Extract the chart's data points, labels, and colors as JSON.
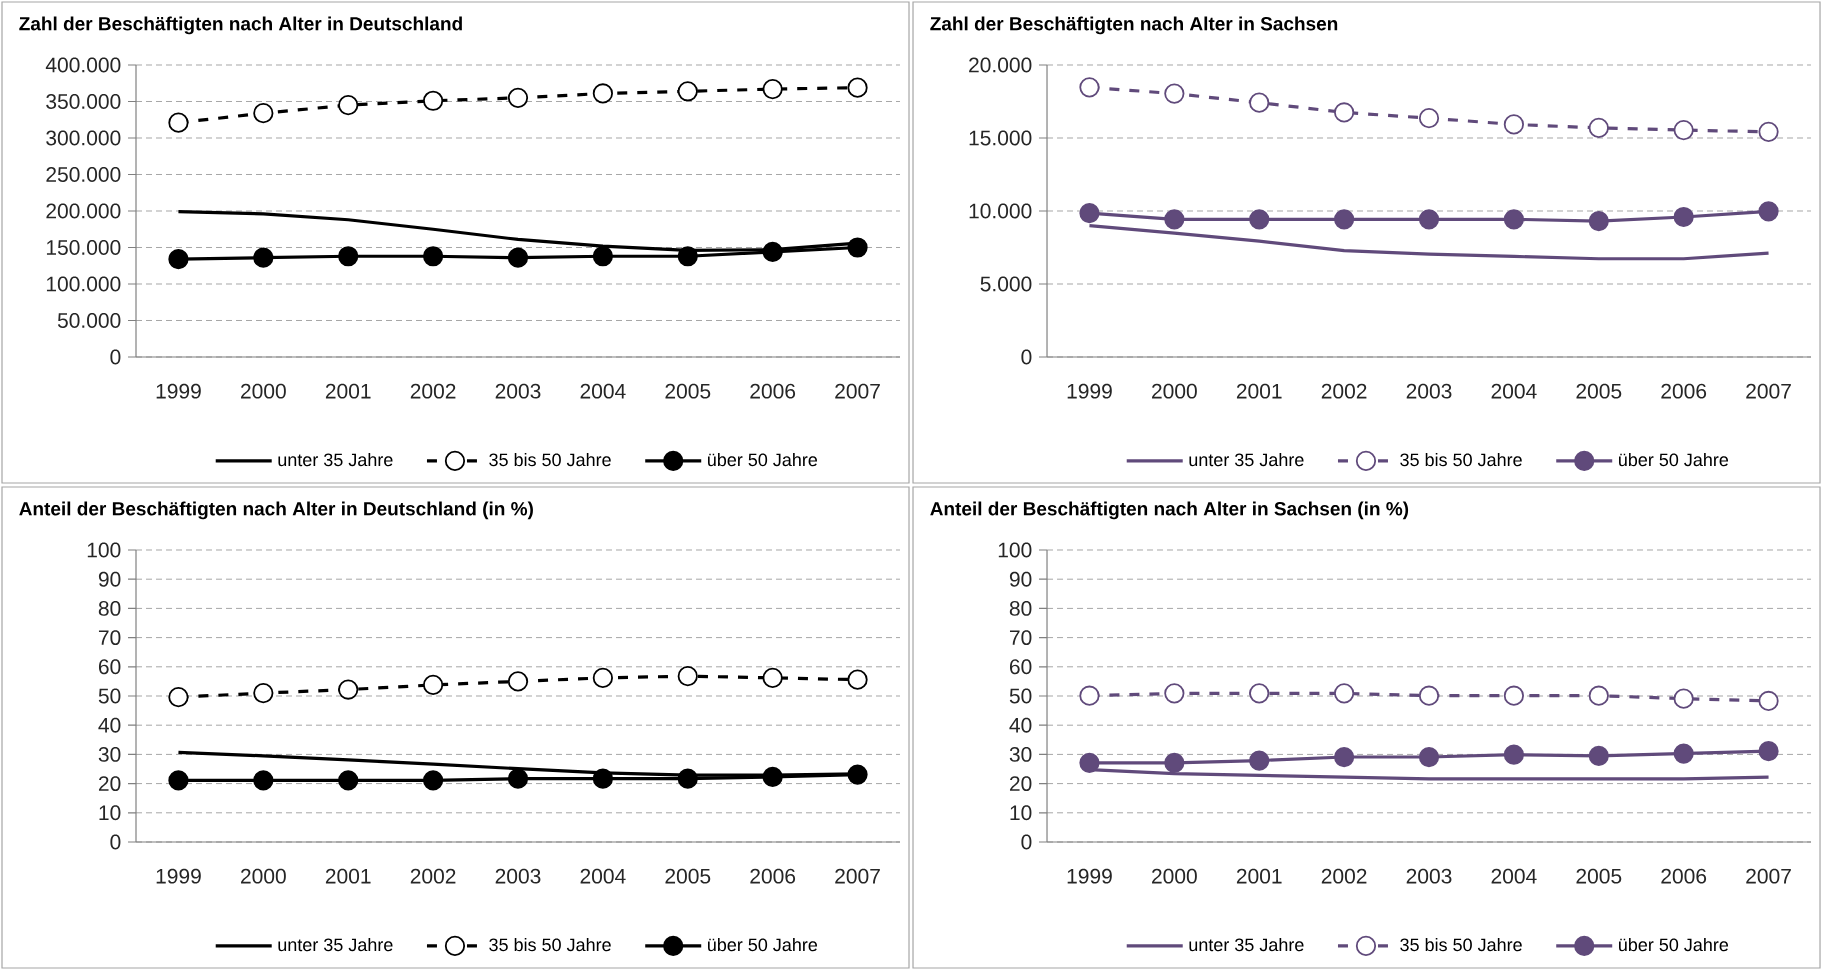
{
  "chart_data": [
    {
      "type": "line",
      "title": "Zahl der Beschäftigten nach Alter in Deutschland",
      "categories": [
        "1999",
        "2000",
        "2001",
        "2002",
        "2003",
        "2004",
        "2005",
        "2006",
        "2007"
      ],
      "series": [
        {
          "name": "unter 35 Jahre",
          "color": "#000000",
          "marker": "none",
          "line_style": "solid",
          "values": [
            199000,
            196000,
            188000,
            175000,
            161000,
            152000,
            146000,
            147000,
            156000
          ]
        },
        {
          "name": "35 bis 50 Jahre",
          "color": "#000000",
          "marker": "circle",
          "line_style": "dashed",
          "values": [
            321000,
            334000,
            345000,
            351000,
            355000,
            361000,
            364000,
            367000,
            369000
          ]
        },
        {
          "name": "über 50 Jahre",
          "color": "#000000",
          "marker": "circle",
          "line_style": "solid",
          "values": [
            134000,
            136000,
            138000,
            138000,
            136000,
            138000,
            138000,
            144000,
            150000
          ]
        }
      ],
      "ylim": [
        0,
        400000
      ],
      "yticks": [
        0,
        {
          "value": 50000,
          "label": "50.000"
        },
        {
          "value": 100000,
          "label": "100.000"
        },
        {
          "value": 150000,
          "label": "150.000"
        },
        {
          "value": 200000,
          "label": "200.000"
        },
        {
          "value": 250000,
          "label": "250.000"
        },
        {
          "value": 300000,
          "label": "300.000"
        },
        {
          "value": 350000,
          "label": "350.000"
        },
        {
          "value": 400000,
          "label": "400.000"
        }
      ],
      "grid": "y",
      "legend": "bottom"
    },
    {
      "type": "line",
      "title": "Zahl der Beschäftigten nach Alter in Sachsen",
      "categories": [
        "1999",
        "2000",
        "2001",
        "2002",
        "2003",
        "2004",
        "2005",
        "2006",
        "2007"
      ],
      "series": [
        {
          "name": "unter 35 Jahre",
          "color": "#604a7b",
          "marker": "none",
          "line_style": "solid",
          "values": [
            9000,
            8490,
            7940,
            7280,
            7050,
            6890,
            6730,
            6730,
            7120
          ]
        },
        {
          "name": "35 bis 50 Jahre",
          "color": "#604a7b",
          "marker": "circle",
          "line_style": "dashed",
          "values": [
            18470,
            18040,
            17420,
            16750,
            16360,
            15930,
            15690,
            15540,
            15420
          ]
        },
        {
          "name": "über 50 Jahre",
          "color": "#604a7b",
          "marker": "circle",
          "line_style": "solid",
          "values": [
            9860,
            9430,
            9430,
            9430,
            9430,
            9430,
            9310,
            9590,
            9980
          ]
        }
      ],
      "ylim": [
        0,
        20000
      ],
      "yticks": [
        0,
        {
          "value": 5000,
          "label": "5.000"
        },
        {
          "value": 10000,
          "label": "10.000"
        },
        {
          "value": 15000,
          "label": "15.000"
        },
        {
          "value": 20000,
          "label": "20.000"
        }
      ],
      "grid": "y",
      "legend": "bottom"
    },
    {
      "type": "line",
      "title": "Anteil der Beschäftigten nach Alter in Deutschland (in %)",
      "categories": [
        "1999",
        "2000",
        "2001",
        "2002",
        "2003",
        "2004",
        "2005",
        "2006",
        "2007"
      ],
      "series": [
        {
          "name": "unter 35 Jahre",
          "color": "#000000",
          "marker": "none",
          "line_style": "solid",
          "values": [
            30.7,
            29.5,
            28.1,
            26.7,
            25.1,
            23.7,
            22.9,
            22.9,
            23.3
          ]
        },
        {
          "name": "35 bis 50 Jahre",
          "color": "#000000",
          "marker": "circle",
          "line_style": "dashed",
          "values": [
            49.6,
            51.0,
            52.2,
            53.8,
            55.0,
            56.2,
            56.8,
            56.2,
            55.6
          ]
        },
        {
          "name": "über 50 Jahre",
          "color": "#000000",
          "marker": "circle",
          "line_style": "solid",
          "values": [
            21.1,
            21.1,
            21.1,
            21.1,
            21.7,
            21.7,
            21.7,
            22.3,
            23.1
          ]
        }
      ],
      "ylim": [
        0,
        100
      ],
      "yticks": [
        0,
        10,
        20,
        30,
        40,
        50,
        60,
        70,
        80,
        90,
        100
      ],
      "grid": "y",
      "legend": "bottom"
    },
    {
      "type": "line",
      "title": "Anteil der Beschäftigten nach Alter in Sachsen (in %)",
      "categories": [
        "1999",
        "2000",
        "2001",
        "2002",
        "2003",
        "2004",
        "2005",
        "2006",
        "2007"
      ],
      "series": [
        {
          "name": "unter 35 Jahre",
          "color": "#604a7b",
          "marker": "none",
          "line_style": "solid",
          "values": [
            24.8,
            23.4,
            22.8,
            22.2,
            21.6,
            21.6,
            21.6,
            21.6,
            22.2
          ]
        },
        {
          "name": "35 bis 50 Jahre",
          "color": "#604a7b",
          "marker": "circle",
          "line_style": "dashed",
          "values": [
            50.1,
            50.9,
            50.9,
            50.9,
            50.1,
            50.1,
            50.1,
            49.1,
            48.3
          ]
        },
        {
          "name": "über 50 Jahre",
          "color": "#604a7b",
          "marker": "circle",
          "line_style": "solid",
          "values": [
            27.1,
            27.1,
            27.9,
            29.1,
            29.1,
            29.9,
            29.5,
            30.3,
            31.1
          ]
        }
      ],
      "ylim": [
        0,
        100
      ],
      "yticks": [
        0,
        10,
        20,
        30,
        40,
        50,
        60,
        70,
        80,
        90,
        100
      ],
      "grid": "y",
      "legend": "bottom"
    }
  ]
}
